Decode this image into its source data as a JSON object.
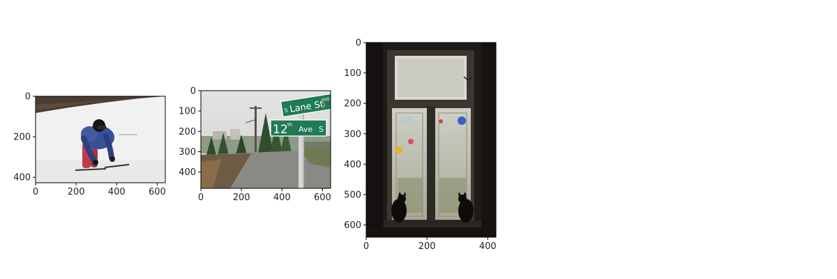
{
  "figure": {
    "panels": [
      {
        "name": "panel-skier",
        "subject": "child skiing on snowy slope",
        "image_width": 640,
        "image_height": 427,
        "xticks": [
          0,
          200,
          400,
          600
        ],
        "yticks": [
          0,
          200,
          400
        ]
      },
      {
        "name": "panel-street-sign",
        "subject": "street signs on pole beside gravel road",
        "image_width": 640,
        "image_height": 480,
        "xticks": [
          0,
          200,
          400,
          600
        ],
        "yticks": [
          0,
          100,
          200,
          300,
          400
        ],
        "signs": {
          "upper_street": "Lane St",
          "upper_number": "600",
          "lower_number": "12",
          "lower_suffix": "th",
          "lower_street": "Ave",
          "lower_direction": "S",
          "upper_prefix": "S"
        }
      },
      {
        "name": "panel-window-cats",
        "subject": "two cat silhouettes sitting on a window sill",
        "image_width": 427,
        "image_height": 640,
        "xticks": [
          0,
          200,
          400
        ],
        "yticks": [
          0,
          100,
          200,
          300,
          400,
          500,
          600
        ]
      }
    ]
  },
  "colors": {
    "sign_green": "#1f7a56",
    "snow": "#f1f1f1",
    "window_dark": "#1e1a16",
    "jacket_blue": "#3a4f9a"
  }
}
